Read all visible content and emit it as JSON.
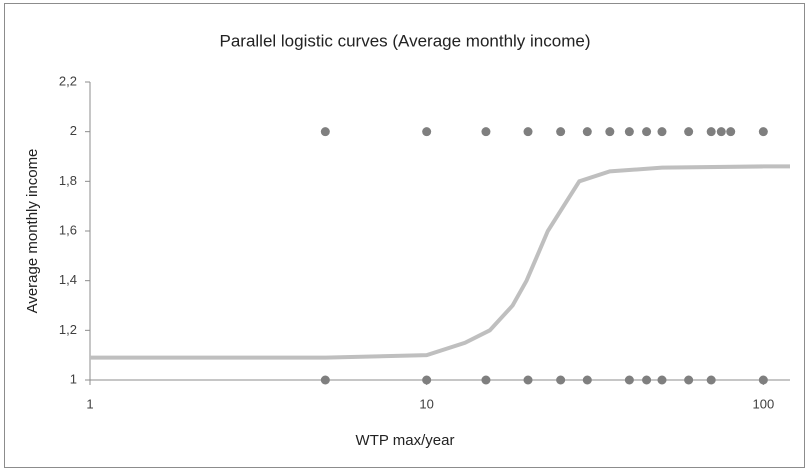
{
  "chart_data": {
    "type": "scatter",
    "title": "Parallel logistic curves (Average monthly income)",
    "x_label": "WTP max/year",
    "y_label": "Average monthly income",
    "log_x": true,
    "xlim": [
      1,
      120
    ],
    "xticks": [
      1,
      10,
      100
    ],
    "ylim": [
      1,
      2.2
    ],
    "yticks": [
      1,
      {
        "value": 1.2,
        "label": "1,2"
      },
      {
        "value": 1.4,
        "label": "1,4"
      },
      {
        "value": 1.6,
        "label": "1,6"
      },
      {
        "value": 1.8,
        "label": "1,8"
      },
      2,
      {
        "value": 2.2,
        "label": "2,2"
      }
    ],
    "series": [
      {
        "type": "scatter",
        "color": "#7f7f7f",
        "x": [
          5,
          10,
          15,
          20,
          25,
          30,
          35,
          40,
          45,
          50,
          60,
          70,
          75,
          80,
          100,
          5,
          10,
          15,
          20,
          25,
          30,
          40,
          45,
          50,
          60,
          70,
          100
        ],
        "values": [
          2,
          2,
          2,
          2,
          2,
          2,
          2,
          2,
          2,
          2,
          2,
          2,
          2,
          2,
          2,
          1,
          1,
          1,
          1,
          1,
          1,
          1,
          1,
          1,
          1,
          1,
          1
        ]
      },
      {
        "type": "line",
        "color": "#bfbfbf",
        "x": [
          1,
          5,
          10,
          13,
          15.4,
          18,
          19.8,
          21.3,
          22.9,
          25.5,
          28.4,
          35,
          50,
          100,
          120
        ],
        "values": [
          1.09,
          1.09,
          1.1,
          1.15,
          1.2,
          1.3,
          1.4,
          1.5,
          1.6,
          1.7,
          1.8,
          1.84,
          1.855,
          1.86,
          1.86
        ]
      }
    ]
  }
}
